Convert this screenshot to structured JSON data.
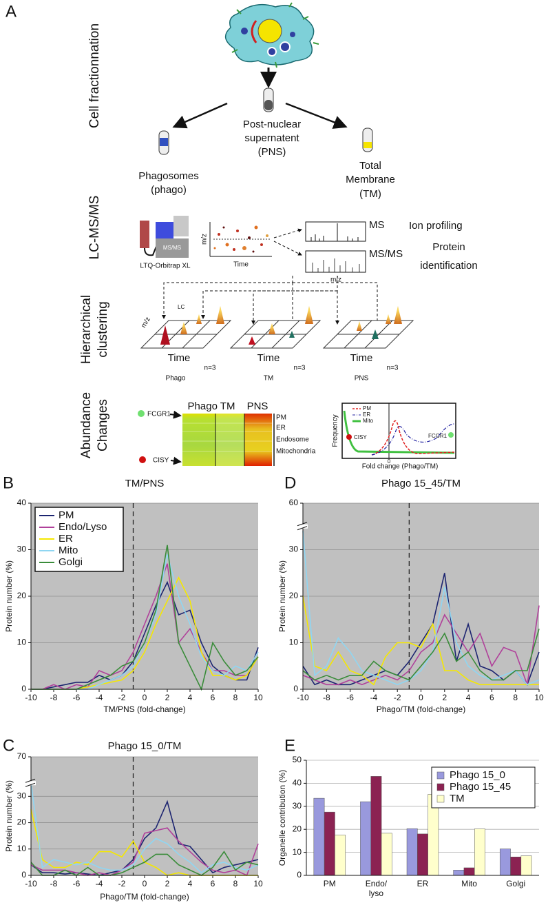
{
  "panel_a": {
    "label": "A",
    "sections": {
      "fractionation": "Cell fractionnation",
      "lcms": "LC-MS/MS",
      "clustering": [
        "Hierarchical",
        "clustering"
      ],
      "abundance": [
        "Abundance",
        "Changes"
      ]
    },
    "pns": [
      "Post-nuclear",
      "supernatent",
      "(PNS)"
    ],
    "phago": [
      "Phagosomes",
      "(phago)"
    ],
    "tm": [
      "Total",
      "Membrane",
      "(TM)"
    ],
    "instrument": {
      "box": "MS/MS",
      "name": "LTQ-Orbitrap XL"
    },
    "map_axes": {
      "y": "m/z",
      "x": "Time"
    },
    "spectra": {
      "ms": "MS",
      "ion": "Ion profiling",
      "msms": "MS/MS",
      "protein": [
        "Protein",
        "identification"
      ],
      "x": "m/z"
    },
    "clusters": {
      "lc": "LC",
      "y": "m/z",
      "time": [
        "Time",
        "Time",
        "Time"
      ],
      "n": [
        "n=3",
        "n=3",
        "n=3"
      ],
      "names": [
        "Phago",
        "TM",
        "PNS"
      ]
    },
    "heatmap": {
      "fcgr1": "FCGR1",
      "cisy": "CISY",
      "cols": [
        "Phago TM",
        "PNS"
      ],
      "rows": [
        "PM",
        "ER",
        "Endosome",
        "Mitochondria"
      ]
    },
    "freq": {
      "legend": [
        "PM",
        "ER",
        "Mito"
      ],
      "y": "Frequency",
      "cisy": "CISY",
      "fcgr1": "FCGR1",
      "zero": "0",
      "x": "Fold change (Phago/TM)"
    }
  },
  "chart_data": [
    {
      "type": "line",
      "label": "B",
      "title": "TM/PNS",
      "x_label": "TM/PNS (fold-change)",
      "y_label": "Protein number (%)",
      "x": [
        -10,
        -9,
        -8,
        -7,
        -6,
        -5,
        -4,
        -3,
        -2,
        -1,
        0,
        1,
        2,
        3,
        4,
        5,
        6,
        7,
        8,
        9,
        10
      ],
      "xlim": [
        -10,
        10
      ],
      "xticks": [
        -10,
        -8,
        -6,
        -4,
        -2,
        0,
        2,
        4,
        6,
        8,
        10
      ],
      "ylim": [
        0,
        40
      ],
      "yticks": [
        0,
        10,
        20,
        30,
        40
      ],
      "grid": true,
      "background": "#c0c0c0",
      "reference_x": -1,
      "legend": "upper left",
      "series": [
        {
          "name": "PM",
          "color": "#1c2470",
          "values": [
            0,
            0,
            0.5,
            1,
            1.5,
            1.5,
            3,
            2,
            3,
            6,
            12,
            18,
            23,
            16,
            17,
            10,
            5,
            3,
            2,
            2,
            9
          ]
        },
        {
          "name": "Endo/Lyso",
          "color": "#b0409a",
          "values": [
            0,
            0,
            1,
            0,
            1,
            0.5,
            4,
            3,
            4,
            8,
            14,
            20,
            27,
            10,
            13,
            8,
            4,
            4,
            3,
            3,
            7
          ]
        },
        {
          "name": "ER",
          "color": "#f5e800",
          "values": [
            0,
            0,
            0,
            0,
            0,
            0.5,
            1,
            1.5,
            2,
            4,
            8,
            14,
            19,
            24,
            19,
            8,
            3,
            3,
            2,
            3,
            7
          ]
        },
        {
          "name": "Mito",
          "color": "#8fd6f2",
          "values": [
            0,
            0,
            0,
            0,
            0,
            0,
            1,
            2,
            3,
            5,
            10,
            16,
            29,
            20,
            14,
            7,
            4,
            3,
            5,
            4,
            8
          ]
        },
        {
          "name": "Golgi",
          "color": "#3a8c3a",
          "values": [
            0,
            0,
            0,
            0,
            0,
            1,
            2,
            3,
            5,
            6,
            10,
            17,
            31,
            10,
            5,
            0,
            10,
            6,
            3,
            4,
            7
          ]
        }
      ]
    },
    {
      "type": "line",
      "label": "D",
      "title": "Phago 15_45/TM",
      "x_label": "Phago/TM (fold-change)",
      "y_label": "Protein number (%)",
      "x": [
        -10,
        -9,
        -8,
        -7,
        -6,
        -5,
        -4,
        -3,
        -2,
        -1,
        0,
        1,
        2,
        3,
        4,
        5,
        6,
        7,
        8,
        9,
        10
      ],
      "xlim": [
        -10,
        10
      ],
      "xticks": [
        -10,
        -8,
        -6,
        -4,
        -2,
        0,
        2,
        4,
        6,
        8,
        10
      ],
      "ylim": [
        0,
        60
      ],
      "yticks": [
        0,
        10,
        20,
        30,
        60
      ],
      "ybreak": [
        35,
        55
      ],
      "grid": true,
      "background": "#c0c0c0",
      "reference_x": -1,
      "series": [
        {
          "color": "#1c2470",
          "values": [
            5,
            1,
            2,
            1,
            1,
            2,
            3,
            4,
            3,
            6,
            10,
            14,
            25,
            6,
            14,
            5,
            4,
            2,
            4,
            1,
            8
          ]
        },
        {
          "color": "#b0409a",
          "values": [
            3,
            2,
            1,
            1,
            2,
            1,
            2,
            3,
            2,
            4,
            8,
            10,
            16,
            12,
            8,
            12,
            5,
            9,
            8,
            1,
            18
          ]
        },
        {
          "color": "#f5e800",
          "values": [
            20,
            5,
            4,
            8,
            4,
            3,
            1,
            7,
            10,
            10,
            9,
            14,
            4,
            4,
            2,
            1,
            1,
            1,
            1,
            1,
            1
          ]
        },
        {
          "color": "#8fd6f2",
          "values": [
            34,
            3,
            5,
            11,
            8,
            4,
            3,
            2,
            1,
            2,
            4,
            8,
            22,
            10,
            5,
            3,
            2,
            3,
            4,
            1,
            2
          ]
        },
        {
          "color": "#3a8c3a",
          "values": [
            4,
            2,
            3,
            2,
            3,
            3,
            6,
            4,
            3,
            2,
            5,
            8,
            12,
            6,
            8,
            4,
            2,
            2,
            4,
            4,
            13
          ]
        }
      ]
    },
    {
      "type": "line",
      "label": "C",
      "title": "Phago 15_0/TM",
      "x_label": "Phago/TM (fold-change)",
      "y_label": "Protein number (%)",
      "x": [
        -10,
        -9,
        -8,
        -7,
        -6,
        -5,
        -4,
        -3,
        -2,
        -1,
        0,
        1,
        2,
        3,
        4,
        5,
        6,
        7,
        8,
        9,
        10
      ],
      "xlim": [
        -10,
        10
      ],
      "xticks": [
        -10,
        -8,
        -6,
        -4,
        -2,
        0,
        2,
        4,
        6,
        8,
        10
      ],
      "ylim": [
        0,
        70
      ],
      "yticks": [
        0,
        10,
        20,
        30,
        70
      ],
      "ybreak": [
        35,
        60
      ],
      "grid": true,
      "background": "#c0c0c0",
      "reference_x": -1,
      "series": [
        {
          "color": "#1c2470",
          "values": [
            4,
            1,
            1,
            0.5,
            1,
            0.5,
            0,
            1,
            2,
            6,
            14,
            18,
            28,
            12,
            11,
            6,
            1,
            3,
            4,
            5,
            6
          ]
        },
        {
          "color": "#b0409a",
          "values": [
            4,
            2,
            2,
            2,
            1,
            0,
            1,
            0,
            2,
            5,
            16,
            17,
            18,
            13,
            9,
            5,
            2,
            1,
            2,
            0,
            12
          ]
        },
        {
          "color": "#f5e800",
          "values": [
            25,
            6,
            3,
            3,
            5,
            4,
            9,
            9,
            7,
            13,
            5,
            3,
            0,
            1,
            0,
            0,
            0,
            0,
            0,
            0,
            0
          ]
        },
        {
          "color": "#8fd6f2",
          "values": [
            35,
            3,
            6,
            5,
            4,
            5,
            3,
            2,
            2,
            4,
            10,
            14,
            12,
            8,
            5,
            1,
            4,
            5,
            3,
            2,
            4
          ]
        },
        {
          "color": "#3a8c3a",
          "values": [
            5,
            0,
            0,
            2,
            0,
            3,
            0,
            0,
            1,
            3,
            5,
            8,
            8,
            4,
            2,
            0,
            3,
            9,
            2,
            5,
            4
          ]
        }
      ]
    },
    {
      "type": "bar",
      "label": "E",
      "y_label": "Organelle contribution (%)",
      "categories": [
        "PM",
        "Endo/\nlyso",
        "ER",
        "Mito",
        "Golgi"
      ],
      "ylim": [
        0,
        50
      ],
      "yticks": [
        0,
        10,
        20,
        30,
        40,
        50
      ],
      "grid": true,
      "background": "#ffffff",
      "legend": "upper right",
      "series": [
        {
          "name": "Phago 15_0",
          "color": "#9999dd",
          "values": [
            33.5,
            32,
            20.3,
            2.3,
            11.5
          ]
        },
        {
          "name": "Phago 15_45",
          "color": "#8b2252",
          "values": [
            27.5,
            43,
            18,
            3.3,
            8
          ]
        },
        {
          "name": "TM",
          "color": "#ffffcc",
          "values": [
            17.5,
            18.3,
            35.2,
            20.2,
            8.5
          ]
        }
      ]
    }
  ]
}
